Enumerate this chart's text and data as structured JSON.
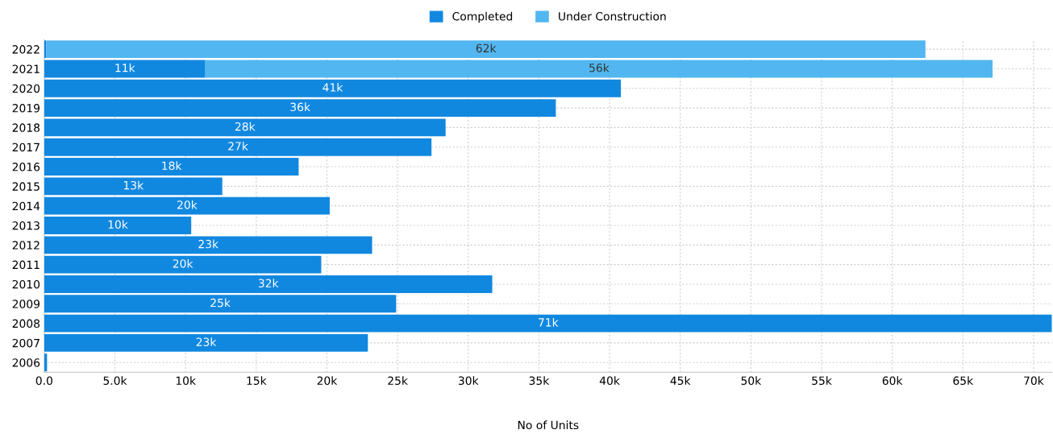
{
  "chart_data": {
    "type": "bar",
    "orientation": "horizontal",
    "stacked": true,
    "xlabel": "No of Units",
    "categories": [
      "2022",
      "2021",
      "2020",
      "2019",
      "2018",
      "2017",
      "2016",
      "2015",
      "2014",
      "2013",
      "2012",
      "2011",
      "2010",
      "2009",
      "2008",
      "2007",
      "2006"
    ],
    "series": [
      {
        "name": "Completed",
        "color": "#1188e0",
        "values": [
          150,
          11400,
          40800,
          36200,
          28400,
          27400,
          18000,
          12600,
          20200,
          10400,
          23200,
          19600,
          31700,
          24900,
          71300,
          22900,
          200
        ],
        "value_labels": [
          null,
          "11k",
          "41k",
          "36k",
          "28k",
          "27k",
          "18k",
          "13k",
          "20k",
          "10k",
          "23k",
          "20k",
          "32k",
          "25k",
          "71k",
          "23k",
          null
        ]
      },
      {
        "name": "Under Construction",
        "color": "#52b7f0",
        "values": [
          62200,
          55700,
          null,
          null,
          null,
          null,
          null,
          null,
          null,
          null,
          null,
          null,
          null,
          null,
          null,
          null,
          null
        ],
        "value_labels": [
          "62k",
          "56k",
          null,
          null,
          null,
          null,
          null,
          null,
          null,
          null,
          null,
          null,
          null,
          null,
          null,
          null,
          null
        ]
      }
    ],
    "xlim": [
      0,
      71300
    ],
    "xticks": [
      {
        "value": 0,
        "label": "0.0"
      },
      {
        "value": 5000,
        "label": "5.0k"
      },
      {
        "value": 10000,
        "label": "10k"
      },
      {
        "value": 15000,
        "label": "15k"
      },
      {
        "value": 20000,
        "label": "20k"
      },
      {
        "value": 25000,
        "label": "25k"
      },
      {
        "value": 30000,
        "label": "30k"
      },
      {
        "value": 35000,
        "label": "35k"
      },
      {
        "value": 40000,
        "label": "40k"
      },
      {
        "value": 45000,
        "label": "45k"
      },
      {
        "value": 50000,
        "label": "50k"
      },
      {
        "value": 55000,
        "label": "55k"
      },
      {
        "value": 60000,
        "label": "60k"
      },
      {
        "value": 65000,
        "label": "65k"
      },
      {
        "value": 70000,
        "label": "70k"
      }
    ],
    "grid": true,
    "legend": "top"
  }
}
